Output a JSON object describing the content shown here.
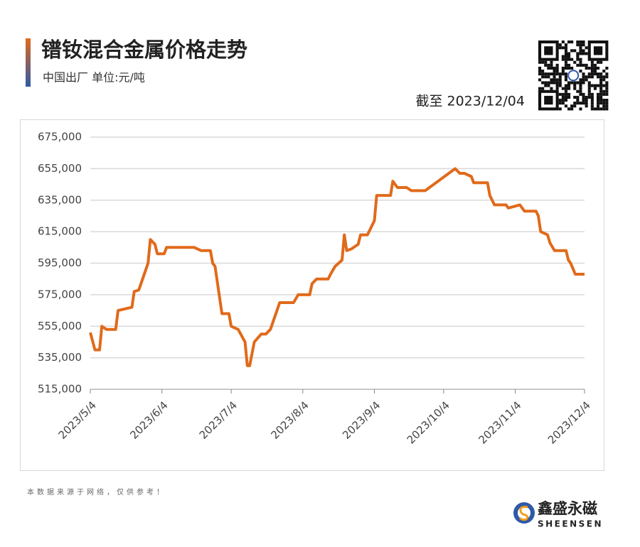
{
  "header": {
    "title": "镨钕混合金属价格走势",
    "subtitle": "中国出厂  单位:元/吨",
    "date_note": "截至 2023/12/04"
  },
  "chart_data": {
    "type": "line",
    "x": [
      "2023/5/4",
      "2023/5/6",
      "2023/5/8",
      "2023/5/9",
      "2023/5/11",
      "2023/5/15",
      "2023/5/16",
      "2023/5/19",
      "2023/5/22",
      "2023/5/23",
      "2023/5/25",
      "2023/5/29",
      "2023/5/30",
      "2023/6/1",
      "2023/6/2",
      "2023/6/5",
      "2023/6/6",
      "2023/6/18",
      "2023/6/21",
      "2023/6/25",
      "2023/6/26",
      "2023/6/27",
      "2023/6/30",
      "2023/7/3",
      "2023/7/4",
      "2023/7/7",
      "2023/7/10",
      "2023/7/11",
      "2023/7/12",
      "2023/7/14",
      "2023/7/17",
      "2023/7/19",
      "2023/7/21",
      "2023/7/25",
      "2023/7/31",
      "2023/8/2",
      "2023/8/7",
      "2023/8/8",
      "2023/8/10",
      "2023/8/15",
      "2023/8/16",
      "2023/8/18",
      "2023/8/21",
      "2023/8/22",
      "2023/8/23",
      "2023/8/25",
      "2023/8/28",
      "2023/8/29",
      "2023/9/1",
      "2023/9/4",
      "2023/9/5",
      "2023/9/11",
      "2023/9/12",
      "2023/9/14",
      "2023/9/18",
      "2023/9/20",
      "2023/9/26",
      "2023/10/9",
      "2023/10/11",
      "2023/10/13",
      "2023/10/16",
      "2023/10/17",
      "2023/10/23",
      "2023/10/24",
      "2023/10/26",
      "2023/10/31",
      "2023/11/1",
      "2023/11/6",
      "2023/11/7",
      "2023/11/8",
      "2023/11/13",
      "2023/11/14",
      "2023/11/15",
      "2023/11/18",
      "2023/11/19",
      "2023/11/21",
      "2023/11/26",
      "2023/11/27",
      "2023/11/28",
      "2023/11/30",
      "2023/12/4"
    ],
    "series": [
      {
        "name": "镨钕混合金属",
        "color": "#e06a1b",
        "values": [
          551000,
          540000,
          540000,
          555000,
          553000,
          553000,
          565000,
          566000,
          567000,
          577000,
          578000,
          595000,
          610000,
          607000,
          601000,
          601000,
          605000,
          605000,
          603000,
          603000,
          595000,
          593000,
          563000,
          563000,
          555000,
          553000,
          545000,
          530000,
          530000,
          545000,
          550000,
          550000,
          553000,
          570000,
          570000,
          575000,
          575000,
          582000,
          585000,
          585000,
          588000,
          593000,
          597000,
          613000,
          603000,
          604000,
          607000,
          613000,
          613000,
          622000,
          638000,
          638000,
          647000,
          643000,
          643000,
          641000,
          641000,
          655000,
          652000,
          652000,
          650000,
          646000,
          646000,
          638000,
          632000,
          632000,
          630000,
          632000,
          630000,
          628000,
          628000,
          625000,
          615000,
          613000,
          608000,
          603000,
          603000,
          597000,
          595000,
          588000,
          588000
        ]
      }
    ],
    "xlim": [
      "2023/5/4",
      "2023/12/4"
    ],
    "xticks": [
      "2023/5/4",
      "2023/6/4",
      "2023/7/4",
      "2023/8/4",
      "2023/9/4",
      "2023/10/4",
      "2023/11/4",
      "2023/12/4"
    ],
    "ylim": [
      515000,
      675000
    ],
    "yticks": [
      {
        "value": 515000,
        "label": "515,000"
      },
      {
        "value": 535000,
        "label": "535,000"
      },
      {
        "value": 555000,
        "label": "555,000"
      },
      {
        "value": 575000,
        "label": "575,000"
      },
      {
        "value": 595000,
        "label": "595,000"
      },
      {
        "value": 615000,
        "label": "615,000"
      },
      {
        "value": 635000,
        "label": "635,000"
      },
      {
        "value": 655000,
        "label": "655,000"
      },
      {
        "value": 675000,
        "label": "675,000"
      }
    ],
    "grid": true
  },
  "footer": {
    "note": "本数据来源于网络，仅供参考！",
    "brand": "鑫盛永磁",
    "brand_en": "SHEENSEN"
  }
}
